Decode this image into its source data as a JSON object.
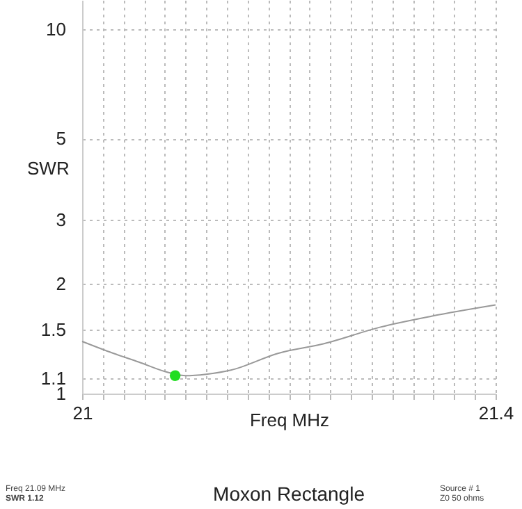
{
  "chart_data": {
    "type": "line",
    "title": "Moxon Rectangle",
    "xlabel": "Freq MHz",
    "ylabel": "SWR",
    "xlim": [
      21,
      21.4
    ],
    "xticks": [
      21,
      {
        "value": 21.02,
        "label": null
      },
      {
        "value": 21.04,
        "label": null
      },
      {
        "value": 21.06,
        "label": null
      },
      {
        "value": 21.08,
        "label": null
      },
      {
        "value": 21.1,
        "label": null
      },
      {
        "value": 21.12,
        "label": null
      },
      {
        "value": 21.14,
        "label": null
      },
      {
        "value": 21.16,
        "label": null
      },
      {
        "value": 21.18,
        "label": null
      },
      {
        "value": 21.2,
        "label": null
      },
      {
        "value": 21.22,
        "label": null
      },
      {
        "value": 21.24,
        "label": null
      },
      {
        "value": 21.26,
        "label": null
      },
      {
        "value": 21.28,
        "label": null
      },
      {
        "value": 21.3,
        "label": null
      },
      {
        "value": 21.32,
        "label": null
      },
      {
        "value": 21.34,
        "label": null
      },
      {
        "value": 21.36,
        "label": null
      },
      {
        "value": 21.38,
        "label": null
      },
      21.4
    ],
    "ylim": [
      1,
      12
    ],
    "yticks": [
      1,
      1.1,
      1.5,
      2,
      3,
      5,
      10
    ],
    "log": true,
    "grid": true,
    "series": [
      {
        "color": "#999999",
        "x": [
          21,
          21.03,
          21.055,
          21.08,
          21.1,
          21.12,
          21.144,
          21.19,
          21.234,
          21.288,
          21.338,
          21.4
        ],
        "values": [
          1.39,
          1.29,
          1.22,
          1.15,
          1.12,
          1.13,
          1.16,
          1.29,
          1.37,
          1.52,
          1.63,
          1.75
        ]
      },
      {
        "type": "scatter",
        "color": "#22dd22",
        "marker": "circle",
        "x": [
          21.09
        ],
        "values": [
          1.12
        ]
      }
    ],
    "annotations": [
      "Freq 21.09 MHz",
      "SWR 1.12",
      "Source # 1",
      "Z0 50 ohms"
    ]
  }
}
